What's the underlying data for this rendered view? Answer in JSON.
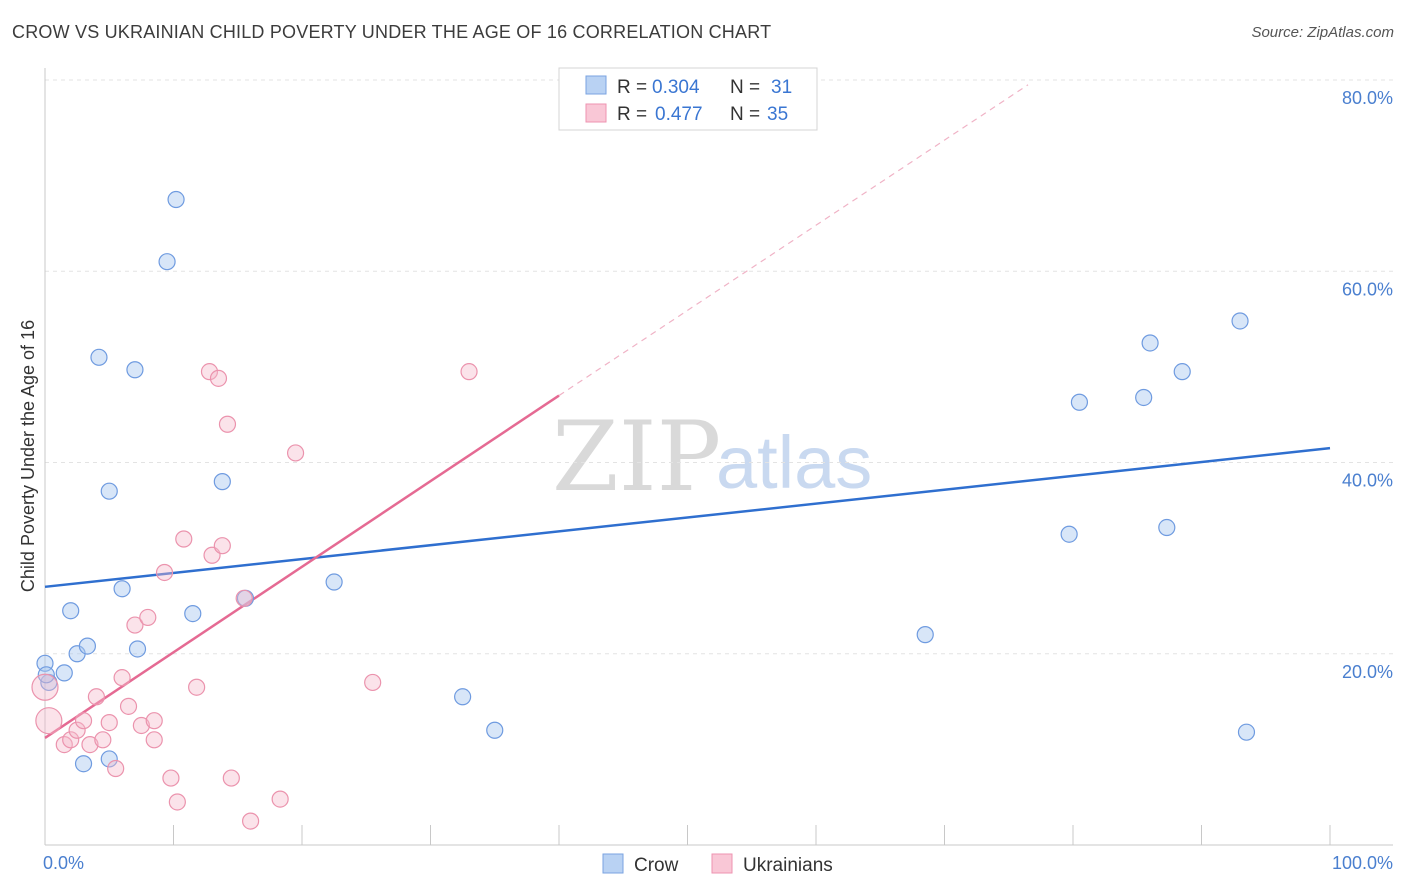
{
  "title": "CROW VS UKRAINIAN CHILD POVERTY UNDER THE AGE OF 16 CORRELATION CHART",
  "source": "Source: ZipAtlas.com",
  "watermark": {
    "zip": "ZIP",
    "atlas": "atlas"
  },
  "legend": {
    "rows": [
      {
        "r_label": "R = ",
        "r_value": "0.304",
        "n_label": "N = ",
        "n_value": "31"
      },
      {
        "r_label": "R = ",
        "r_value": "0.477",
        "n_label": "N = ",
        "n_value": "35"
      }
    ]
  },
  "bottom_legend": [
    "Crow",
    "Ukrainians"
  ],
  "chart_data": {
    "type": "scatter",
    "title": "CROW VS UKRAINIAN CHILD POVERTY UNDER THE AGE OF 16 CORRELATION CHART",
    "xlabel": "",
    "ylabel": "Child Poverty Under the Age of 16",
    "xlim": [
      0,
      100
    ],
    "ylim": [
      0,
      80
    ],
    "x_tick_labels": [
      "0.0%",
      "100.0%"
    ],
    "y_ticks": [
      20,
      40,
      60,
      80
    ],
    "y_tick_labels": [
      "20.0%",
      "40.0%",
      "60.0%",
      "80.0%"
    ],
    "colors": {
      "crow": "#a9c8f0",
      "crow_line": "#2f6fcf",
      "ukr": "#f5b8cb",
      "ukr_line": "#e56a93",
      "tick": "#4a7fcf"
    },
    "series": [
      {
        "name": "Crow",
        "r": 0.304,
        "n": 31,
        "trend": {
          "x": [
            0,
            100
          ],
          "y": [
            27.0,
            41.5
          ]
        },
        "points": [
          [
            0.0,
            19.0
          ],
          [
            0.3,
            17.0
          ],
          [
            1.5,
            18.0
          ],
          [
            2.0,
            24.5
          ],
          [
            2.5,
            20.0
          ],
          [
            3.3,
            20.8
          ],
          [
            3.0,
            8.5
          ],
          [
            4.2,
            51.0
          ],
          [
            5.0,
            37.0
          ],
          [
            5.0,
            9.0
          ],
          [
            6.0,
            26.8
          ],
          [
            7.0,
            49.7
          ],
          [
            7.2,
            20.5
          ],
          [
            9.5,
            61.0
          ],
          [
            10.2,
            67.5
          ],
          [
            11.5,
            24.2
          ],
          [
            13.8,
            38.0
          ],
          [
            15.6,
            25.8
          ],
          [
            22.5,
            27.5
          ],
          [
            32.5,
            15.5
          ],
          [
            35.0,
            12.0
          ],
          [
            68.5,
            22.0
          ],
          [
            79.7,
            32.5
          ],
          [
            80.5,
            46.3
          ],
          [
            85.5,
            46.8
          ],
          [
            86.0,
            52.5
          ],
          [
            87.3,
            33.2
          ],
          [
            88.5,
            49.5
          ],
          [
            93.0,
            54.8
          ],
          [
            93.5,
            11.8
          ],
          [
            0.1,
            17.8
          ]
        ]
      },
      {
        "name": "Ukrainians",
        "r": 0.477,
        "n": 35,
        "trend": {
          "x": [
            0,
            40
          ],
          "y": [
            11.2,
            47.0
          ]
        },
        "trend_dashed": {
          "x": [
            40,
            76.5
          ],
          "y": [
            47.0,
            79.5
          ]
        },
        "points": [
          [
            0.0,
            16.5
          ],
          [
            1.5,
            10.5
          ],
          [
            2.0,
            11.0
          ],
          [
            2.5,
            12.0
          ],
          [
            3.0,
            13.0
          ],
          [
            3.5,
            10.5
          ],
          [
            4.0,
            15.5
          ],
          [
            4.5,
            11.0
          ],
          [
            5.0,
            12.8
          ],
          [
            5.5,
            8.0
          ],
          [
            6.0,
            17.5
          ],
          [
            6.5,
            14.5
          ],
          [
            7.0,
            23.0
          ],
          [
            7.5,
            12.5
          ],
          [
            8.0,
            23.8
          ],
          [
            8.5,
            11.0
          ],
          [
            8.5,
            13.0
          ],
          [
            9.3,
            28.5
          ],
          [
            9.8,
            7.0
          ],
          [
            10.3,
            4.5
          ],
          [
            10.8,
            32.0
          ],
          [
            11.8,
            16.5
          ],
          [
            12.8,
            49.5
          ],
          [
            13.0,
            30.3
          ],
          [
            13.5,
            48.8
          ],
          [
            13.8,
            31.3
          ],
          [
            14.2,
            44.0
          ],
          [
            14.5,
            7.0
          ],
          [
            15.5,
            25.8
          ],
          [
            16.0,
            2.5
          ],
          [
            18.3,
            4.8
          ],
          [
            19.5,
            41.0
          ],
          [
            25.5,
            17.0
          ],
          [
            33.0,
            49.5
          ],
          [
            0.3,
            13.0
          ]
        ]
      }
    ]
  }
}
